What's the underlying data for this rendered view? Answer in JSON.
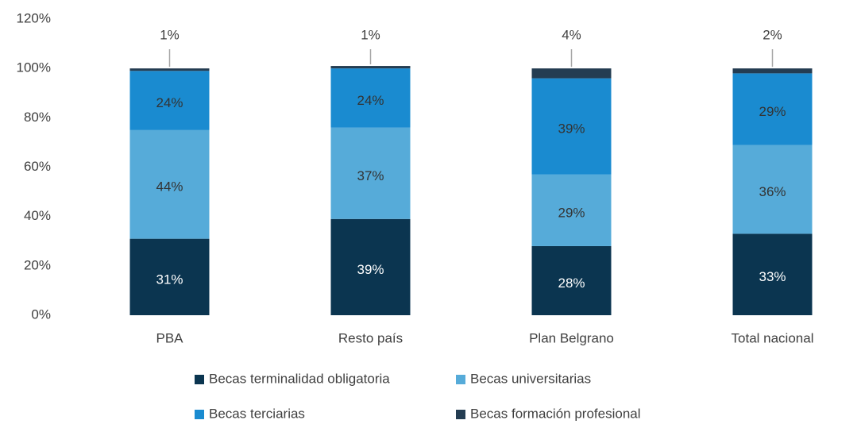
{
  "chart_data": {
    "type": "bar",
    "stacked": true,
    "categories": [
      "PBA",
      "Resto país",
      "Plan Belgrano",
      "Total nacional"
    ],
    "series": [
      {
        "name": "Becas terminalidad obligatoria",
        "color": "#0b3550",
        "values": [
          31,
          39,
          28,
          33
        ],
        "value_labels": [
          "31%",
          "39%",
          "28%",
          "33%"
        ]
      },
      {
        "name": "Becas universitarias",
        "color": "#56abd9",
        "values": [
          44,
          37,
          29,
          36
        ],
        "value_labels": [
          "44%",
          "37%",
          "29%",
          "36%"
        ]
      },
      {
        "name": "Becas terciarias",
        "color": "#1a8bd0",
        "values": [
          24,
          24,
          39,
          29
        ],
        "value_labels": [
          "24%",
          "24%",
          "39%",
          "29%"
        ]
      },
      {
        "name": "Becas formación profesional",
        "color": "#243d52",
        "values": [
          1,
          1,
          4,
          2
        ],
        "value_labels": [
          "1%",
          "1%",
          "4%",
          "2%"
        ]
      }
    ],
    "ylim": [
      0,
      120
    ],
    "yticks": [
      {
        "value": 0,
        "label": "0%"
      },
      {
        "value": 20,
        "label": "20%"
      },
      {
        "value": 40,
        "label": "40%"
      },
      {
        "value": 60,
        "label": "60%"
      },
      {
        "value": 80,
        "label": "80%"
      },
      {
        "value": 100,
        "label": "100%"
      },
      {
        "value": 120,
        "label": "120%"
      }
    ],
    "grid": false,
    "legend": "bottom"
  }
}
